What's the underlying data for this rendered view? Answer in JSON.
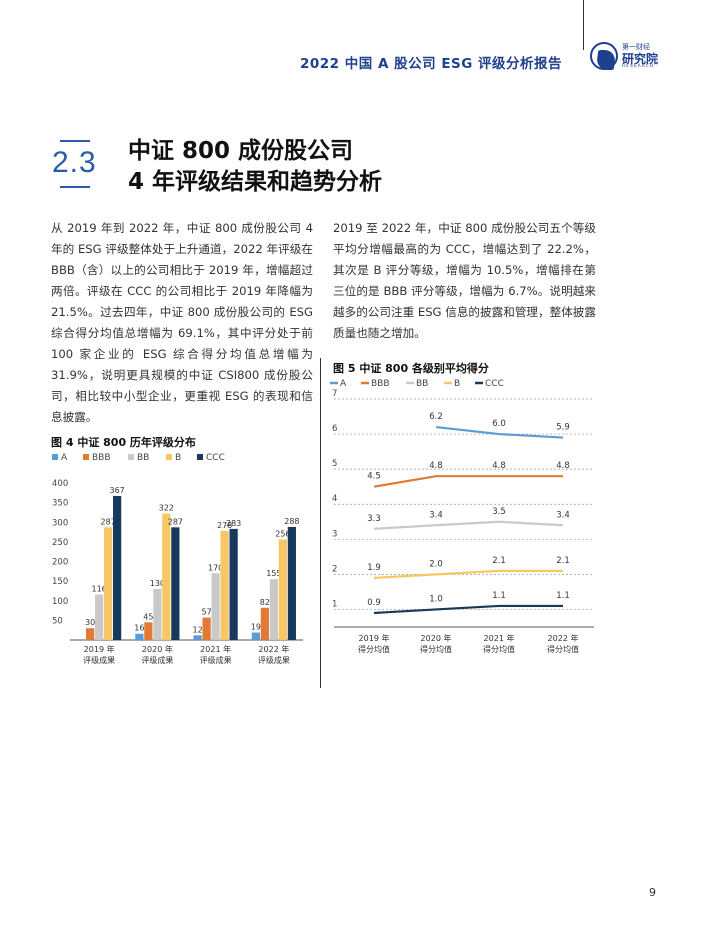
{
  "header": {
    "report_title": "2022 中国 A 股公司 ESG 评级分析报告",
    "logo_top": "第一财经",
    "logo_main": "研究院",
    "logo_sub": "RESEARCH"
  },
  "section": {
    "number": "2.3",
    "title_line1": "中证 800 成份股公司",
    "title_line2": "4 年评级结果和趋势分析"
  },
  "paragraphs": {
    "left": "从 2019 年到 2022 年，中证 800 成份股公司 4 年的 ESG 评级整体处于上升通道，2022 年评级在 BBB（含）以上的公司相比于 2019 年，增幅超过两倍。评级在 CCC 的公司相比于 2019 年降幅为 21.5%。过去四年，中证 800 成份股公司的 ESG 综合得分均值总增幅为 69.1%，其中评分处于前 100 家企业的 ESG 综合得分均值总增幅为 31.9%，说明更具规模的中证 CSI800 成份股公司，相比较中小型企业，更重视 ESG 的表现和信息披露。",
    "right": "2019 至 2022 年，中证 800 成份股公司五个等级平均分增幅最高的为 CCC，增幅达到了 22.2%，其次是 B 评分等级，增幅为 10.5%，增幅排在第三位的是 BBB 评分等级，增幅为 6.7%。说明越来越多的公司注重 ESG 信息的披露和管理，整体披露质量也随之增加。"
  },
  "page_number": "9",
  "colors": {
    "A": "#5b9bd5",
    "BBB": "#e07a35",
    "BB": "#c9c9c9",
    "B": "#f7c766",
    "CCC": "#17395c",
    "accent": "#1f3f8f"
  },
  "chart_data": [
    {
      "type": "bar",
      "title": "图 4  中证 800 历年评级分布",
      "categories": [
        "2019 年\n评级成果",
        "2020 年\n评级成果",
        "2021 年\n评级成果",
        "2022 年\n评级成果"
      ],
      "series": [
        {
          "name": "A",
          "values": [
            null,
            16,
            12,
            19
          ]
        },
        {
          "name": "BBB",
          "values": [
            30,
            45,
            57,
            82
          ]
        },
        {
          "name": "BB",
          "values": [
            116,
            130,
            170,
            155
          ]
        },
        {
          "name": "B",
          "values": [
            287,
            322,
            278,
            256
          ]
        },
        {
          "name": "CCC",
          "values": [
            367,
            287,
            283,
            288
          ]
        }
      ],
      "yticks": [
        50,
        100,
        150,
        200,
        250,
        300,
        350,
        400
      ],
      "ylim": [
        0,
        400
      ],
      "legend_position": "top-left"
    },
    {
      "type": "line",
      "title": "图 5  中证 800 各级别平均得分",
      "categories": [
        "2019 年\n得分均值",
        "2020 年\n得分均值",
        "2021 年\n得分均值",
        "2022 年\n得分均值"
      ],
      "series": [
        {
          "name": "A",
          "values": [
            null,
            6.2,
            6.0,
            5.9
          ]
        },
        {
          "name": "BBB",
          "values": [
            4.5,
            4.8,
            4.8,
            4.8
          ]
        },
        {
          "name": "BB",
          "values": [
            3.3,
            3.4,
            3.5,
            3.4
          ]
        },
        {
          "name": "B",
          "values": [
            1.9,
            2.0,
            2.1,
            2.1
          ]
        },
        {
          "name": "CCC",
          "values": [
            0.9,
            1.0,
            1.1,
            1.1
          ]
        }
      ],
      "yticks": [
        1,
        2,
        3,
        4,
        5,
        6,
        7
      ],
      "ylim": [
        0.5,
        7
      ],
      "grid": "horizontal dashed",
      "legend_position": "top-left"
    }
  ]
}
